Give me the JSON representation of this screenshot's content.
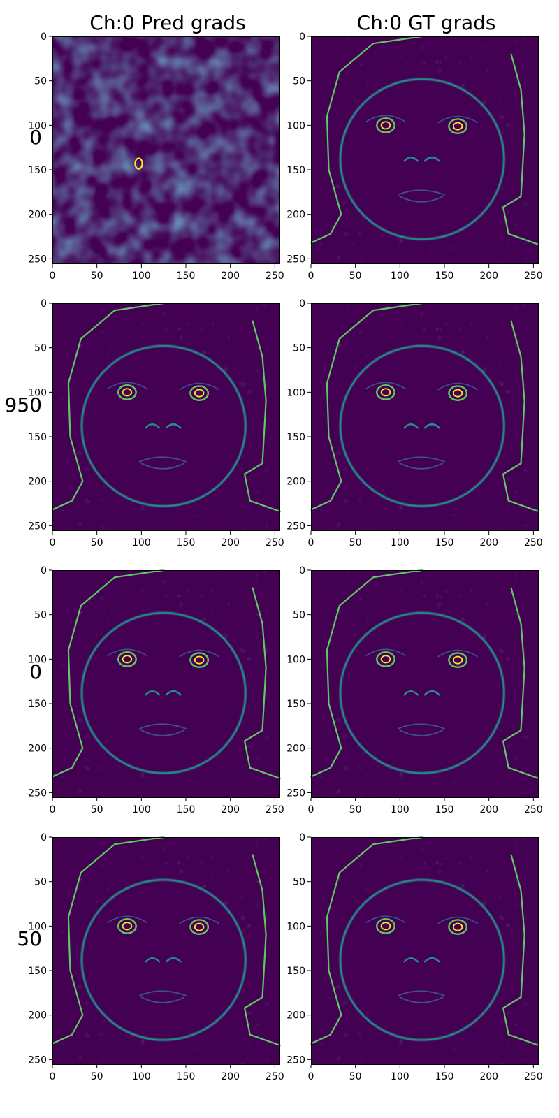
{
  "columns": [
    {
      "title": "Ch:0 Pred grads"
    },
    {
      "title": "Ch:0 GT grads"
    }
  ],
  "rows": [
    {
      "label": "0",
      "pred_image": "noise",
      "gt_image": "face-edges"
    },
    {
      "label": "950",
      "pred_image": "face-edges",
      "gt_image": "face-edges"
    },
    {
      "label": "0",
      "pred_image": "face-edges",
      "gt_image": "face-edges"
    },
    {
      "label": "50",
      "pred_image": "face-edges",
      "gt_image": "face-edges"
    }
  ],
  "axes": {
    "x_ticks": [
      0,
      50,
      100,
      150,
      200,
      250
    ],
    "y_ticks": [
      0,
      50,
      100,
      150,
      200,
      250
    ],
    "xlim": [
      0,
      256
    ],
    "ylim": [
      256,
      0
    ]
  },
  "colors": {
    "viridis_dark": "#440154",
    "viridis_blue": "#3b528b",
    "viridis_teal": "#21918c",
    "viridis_green": "#5ec962",
    "viridis_yellow": "#fde725",
    "background": "#ffffff"
  }
}
